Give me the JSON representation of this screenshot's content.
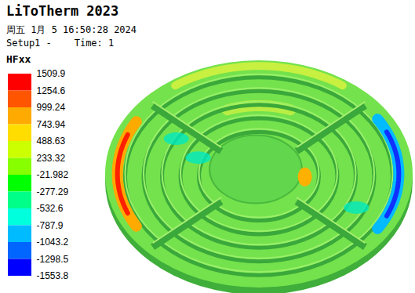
{
  "header": {
    "title": "LiToTherm 2023",
    "timestamp": "周五 1月 5 16:50:28 2024",
    "setup": "Setup1 -    Time: 1"
  },
  "chart_data": {
    "type": "contour",
    "title": "HFxx",
    "colorbar": {
      "range": [
        -1553.8,
        1509.9
      ],
      "ticks": [
        1509.9,
        1254.6,
        999.24,
        743.94,
        488.63,
        233.32,
        -21.982,
        -277.29,
        -532.6,
        -787.9,
        -1043.2,
        -1298.5,
        -1553.8
      ],
      "colors": [
        "#ff0000",
        "#ff5500",
        "#ffaa00",
        "#ffdd00",
        "#ccff00",
        "#88ff00",
        "#00ff00",
        "#00ff88",
        "#00ffdd",
        "#00bbff",
        "#0066ff",
        "#0000ff"
      ]
    }
  }
}
